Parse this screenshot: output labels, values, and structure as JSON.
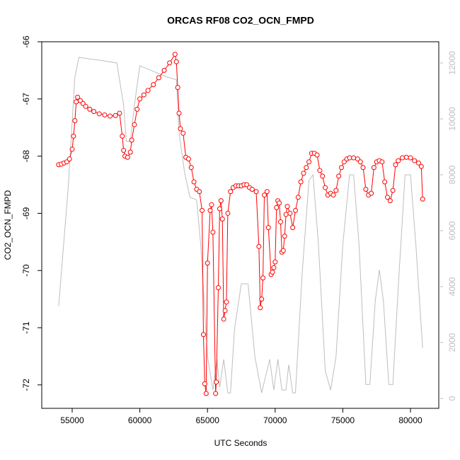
{
  "chart_data": {
    "type": "line",
    "title": "ORCAS RF08 CO2_OCN_FMPD",
    "x_label": "UTC Seconds",
    "y_label": "CO2_OCN_FMPD",
    "xlim": [
      52751,
      82092
    ],
    "xticks": [
      55000,
      60000,
      65000,
      70000,
      75000,
      80000
    ],
    "ylim": [
      -72.41,
      -66
    ],
    "yticks": [
      -72,
      -71,
      -70,
      -69,
      -68,
      -67,
      -66
    ],
    "y2lim": [
      -354,
      12759
    ],
    "y2ticks": [
      0,
      2000,
      4000,
      6000,
      8000,
      10000,
      12000
    ],
    "y2_color": "#bebebe",
    "series": [
      {
        "color": "#ff0000",
        "markers": "circle",
        "x": [
          54000,
          54200,
          54400,
          54600,
          54800,
          55000,
          55100,
          55200,
          55300,
          55400,
          55600,
          55800,
          56000,
          56300,
          56600,
          57000,
          57400,
          57800,
          58200,
          58500,
          58700,
          58800,
          58900,
          59100,
          59300,
          59400,
          59600,
          59800,
          60000,
          60300,
          60600,
          61000,
          61400,
          61800,
          62200,
          62600,
          62700,
          62800,
          62900,
          63000,
          63200,
          63400,
          63600,
          63800,
          64000,
          64200,
          64400,
          64600,
          64700,
          64800,
          64900,
          65000,
          65200,
          65300,
          65400,
          65600,
          65650,
          65800,
          65900,
          66000,
          66100,
          66200,
          66300,
          66400,
          66500,
          66700,
          66900,
          67100,
          67300,
          67500,
          67700,
          67900,
          68100,
          68300,
          68600,
          68800,
          68900,
          69000,
          69100,
          69200,
          69400,
          69500,
          69700,
          69800,
          69900,
          70000,
          70100,
          70200,
          70300,
          70400,
          70500,
          70600,
          70700,
          70800,
          70900,
          71100,
          71300,
          71500,
          71700,
          71900,
          72100,
          72300,
          72500,
          72700,
          72900,
          73100,
          73300,
          73500,
          73700,
          73900,
          74100,
          74300,
          74500,
          74700,
          74900,
          75100,
          75300,
          75500,
          75800,
          76100,
          76300,
          76500,
          76700,
          76900,
          77100,
          77300,
          77500,
          77700,
          77900,
          78100,
          78300,
          78500,
          78700,
          78900,
          79100,
          79400,
          79700,
          80000,
          80300,
          80600,
          80800,
          80900
        ],
        "values": [
          -68.15,
          -68.14,
          -68.12,
          -68.1,
          -68.05,
          -67.88,
          -67.65,
          -67.38,
          -67.05,
          -66.97,
          -67.03,
          -67.08,
          -67.13,
          -67.18,
          -67.22,
          -67.26,
          -67.28,
          -67.3,
          -67.29,
          -67.25,
          -67.65,
          -67.9,
          -68.0,
          -68.02,
          -67.93,
          -67.72,
          -67.45,
          -67.18,
          -67.0,
          -66.93,
          -66.85,
          -66.75,
          -66.63,
          -66.5,
          -66.37,
          -66.22,
          -66.35,
          -66.8,
          -67.25,
          -67.52,
          -67.6,
          -68.02,
          -68.05,
          -68.2,
          -68.45,
          -68.58,
          -68.62,
          -68.95,
          -71.12,
          -71.98,
          -72.15,
          -69.87,
          -68.95,
          -68.85,
          -69.33,
          -72.15,
          -71.95,
          -70.3,
          -68.92,
          -68.78,
          -69.1,
          -70.85,
          -70.7,
          -70.55,
          -69.0,
          -68.62,
          -68.55,
          -68.52,
          -68.52,
          -68.52,
          -68.5,
          -68.5,
          -68.55,
          -68.58,
          -68.62,
          -69.58,
          -70.65,
          -70.5,
          -70.13,
          -68.68,
          -68.62,
          -69.25,
          -70.07,
          -70.03,
          -69.95,
          -69.85,
          -68.9,
          -68.78,
          -68.82,
          -69.15,
          -69.68,
          -69.65,
          -69.4,
          -69.02,
          -68.88,
          -69.0,
          -69.25,
          -68.95,
          -68.72,
          -68.45,
          -68.3,
          -68.2,
          -68.1,
          -67.95,
          -67.95,
          -67.98,
          -68.25,
          -68.35,
          -68.55,
          -68.68,
          -68.65,
          -68.68,
          -68.6,
          -68.35,
          -68.2,
          -68.1,
          -68.05,
          -68.03,
          -68.03,
          -68.05,
          -68.1,
          -68.2,
          -68.58,
          -68.68,
          -68.65,
          -68.2,
          -68.1,
          -68.08,
          -68.1,
          -68.45,
          -68.72,
          -68.78,
          -68.6,
          -68.15,
          -68.08,
          -68.03,
          -68.02,
          -68.03,
          -68.08,
          -68.12,
          -68.18,
          -68.75
        ]
      },
      {
        "color": "#bebebe",
        "markers": "none",
        "axis": "y2",
        "x": [
          54000,
          54700,
          55200,
          55500,
          57000,
          58300,
          58800,
          59000,
          59300,
          59600,
          60000,
          61000,
          62000,
          62700,
          62900,
          63300,
          63700,
          64200,
          64500,
          65000,
          65400,
          65700,
          65900,
          66200,
          66500,
          66700,
          67000,
          67500,
          68000,
          68500,
          69000,
          69300,
          69600,
          69900,
          70200,
          70500,
          70800,
          71000,
          71300,
          71500,
          72000,
          72500,
          72800,
          73200,
          73700,
          74100,
          74500,
          75000,
          75500,
          75800,
          76200,
          76700,
          77000,
          77400,
          77700,
          78000,
          78400,
          78700,
          79100,
          79600,
          80000,
          80400,
          80900
        ],
        "values": [
          3300,
          7500,
          11500,
          12200,
          12100,
          12000,
          10500,
          9200,
          9200,
          10500,
          11900,
          11700,
          11500,
          11400,
          9500,
          8100,
          7200,
          7100,
          5500,
          1500,
          300,
          1400,
          400,
          1400,
          200,
          200,
          2500,
          4100,
          4100,
          1500,
          200,
          800,
          1400,
          300,
          1400,
          300,
          300,
          1200,
          200,
          200,
          4500,
          7800,
          8000,
          5500,
          1000,
          300,
          1500,
          5500,
          8000,
          8000,
          5500,
          500,
          500,
          3500,
          4600,
          3500,
          500,
          500,
          4000,
          8000,
          8000,
          5500,
          1800
        ]
      }
    ]
  }
}
